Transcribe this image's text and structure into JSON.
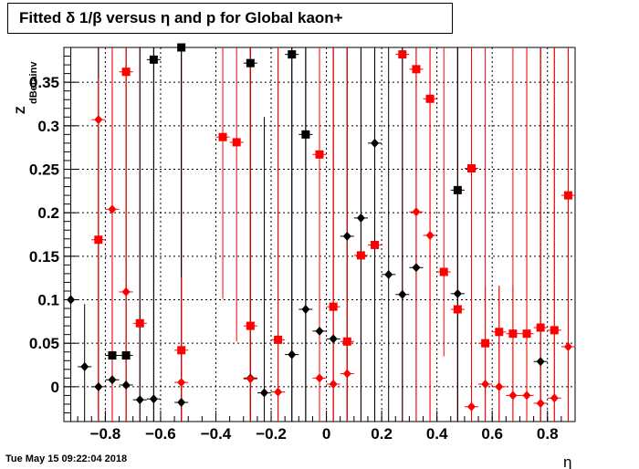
{
  "title": "Fitted δ 1/β versus η and p for Global kaon+",
  "timestamp": "Tue May 15 09:22:04 2018",
  "chart_data": {
    "type": "scatter",
    "title": "Fitted δ 1/β versus η and p for Global kaon+",
    "xlabel": "η",
    "ylabel_main": "Z",
    "ylabel_sub": "dBetainv",
    "xlim": [
      -0.95,
      0.9
    ],
    "ylim": [
      -0.04,
      0.39
    ],
    "xticks": [
      -0.8,
      -0.6,
      -0.4,
      -0.2,
      0,
      0.2,
      0.4,
      0.6,
      0.8
    ],
    "xtick_labels": [
      "−0.8",
      "−0.6",
      "−0.4",
      "−0.2",
      "0",
      "0.2",
      "0.4",
      "0.6",
      "0.8"
    ],
    "yticks": [
      0,
      0.05,
      0.1,
      0.15,
      0.2,
      0.25,
      0.3,
      0.35
    ],
    "ytick_labels": [
      "0",
      "0.05",
      "0.1",
      "0.15",
      "0.2",
      "0.25",
      "0.3",
      "0.35"
    ],
    "series": [
      {
        "marker": "square",
        "color": "#000000",
        "points": [
          {
            "x": -0.775,
            "y": 0.036,
            "lo": -0.04,
            "hi": 0.39
          },
          {
            "x": -0.725,
            "y": 0.036,
            "lo": -0.04,
            "hi": 0.39
          },
          {
            "x": -0.625,
            "y": 0.376,
            "lo": -0.04,
            "hi": 0.39
          },
          {
            "x": -0.525,
            "y": 0.39,
            "lo": -0.04,
            "hi": 0.39
          },
          {
            "x": -0.275,
            "y": 0.372,
            "lo": -0.04,
            "hi": 0.39
          },
          {
            "x": -0.125,
            "y": 0.382,
            "lo": -0.04,
            "hi": 0.39
          },
          {
            "x": -0.075,
            "y": 0.29,
            "lo": -0.04,
            "hi": 0.39
          },
          {
            "x": 0.475,
            "y": 0.226,
            "lo": -0.04,
            "hi": 0.39
          }
        ]
      },
      {
        "marker": "square",
        "color": "#ff0000",
        "points": [
          {
            "x": -0.825,
            "y": 0.169,
            "lo": -0.04,
            "hi": 0.39
          },
          {
            "x": -0.725,
            "y": 0.362,
            "lo": -0.04,
            "hi": 0.39
          },
          {
            "x": -0.675,
            "y": 0.073,
            "lo": -0.04,
            "hi": 0.39
          },
          {
            "x": -0.525,
            "y": 0.042,
            "lo": -0.04,
            "hi": 0.39
          },
          {
            "x": -0.375,
            "y": 0.287,
            "lo": 0.101,
            "hi": 0.39
          },
          {
            "x": -0.325,
            "y": 0.281,
            "lo": 0.052,
            "hi": 0.39
          },
          {
            "x": -0.275,
            "y": 0.07,
            "lo": -0.04,
            "hi": 0.39
          },
          {
            "x": -0.175,
            "y": 0.054,
            "lo": -0.04,
            "hi": 0.39
          },
          {
            "x": -0.025,
            "y": 0.267,
            "lo": -0.04,
            "hi": 0.39
          },
          {
            "x": 0.025,
            "y": 0.092,
            "lo": -0.04,
            "hi": 0.39
          },
          {
            "x": 0.075,
            "y": 0.052,
            "lo": -0.04,
            "hi": 0.39
          },
          {
            "x": 0.125,
            "y": 0.151,
            "lo": -0.04,
            "hi": 0.39
          },
          {
            "x": 0.175,
            "y": 0.163,
            "lo": -0.04,
            "hi": 0.39
          },
          {
            "x": 0.275,
            "y": 0.382,
            "lo": -0.04,
            "hi": 0.39
          },
          {
            "x": 0.325,
            "y": 0.365,
            "lo": -0.04,
            "hi": 0.39
          },
          {
            "x": 0.375,
            "y": 0.331,
            "lo": -0.04,
            "hi": 0.39
          },
          {
            "x": 0.425,
            "y": 0.132,
            "lo": 0.035,
            "hi": 0.39
          },
          {
            "x": 0.475,
            "y": 0.089,
            "lo": -0.04,
            "hi": 0.39
          },
          {
            "x": 0.525,
            "y": 0.251,
            "lo": -0.04,
            "hi": 0.39
          },
          {
            "x": 0.575,
            "y": 0.05,
            "lo": -0.04,
            "hi": 0.39
          },
          {
            "x": 0.625,
            "y": 0.063,
            "lo": -0.04,
            "hi": 0.116
          },
          {
            "x": 0.675,
            "y": 0.061,
            "lo": -0.04,
            "hi": 0.116
          },
          {
            "x": 0.725,
            "y": 0.061,
            "lo": -0.04,
            "hi": 0.39
          },
          {
            "x": 0.775,
            "y": 0.068,
            "lo": -0.04,
            "hi": 0.39
          },
          {
            "x": 0.825,
            "y": 0.065,
            "lo": -0.04,
            "hi": 0.39
          },
          {
            "x": 0.875,
            "y": 0.22,
            "lo": -0.04,
            "hi": 0.39
          }
        ]
      },
      {
        "marker": "diamond",
        "color": "#000000",
        "points": [
          {
            "x": -0.925,
            "y": 0.1,
            "lo": -0.04,
            "hi": 0.39
          },
          {
            "x": -0.875,
            "y": 0.023,
            "lo": -0.04,
            "hi": 0.095
          },
          {
            "x": -0.825,
            "y": 0.0,
            "lo": -0.04,
            "hi": 0.39
          },
          {
            "x": -0.775,
            "y": 0.008,
            "lo": -0.04,
            "hi": 0.39
          },
          {
            "x": -0.725,
            "y": 0.002,
            "lo": -0.04,
            "hi": 0.39
          },
          {
            "x": -0.675,
            "y": -0.015,
            "lo": -0.04,
            "hi": 0.39
          },
          {
            "x": -0.625,
            "y": -0.014,
            "lo": -0.04,
            "hi": 0.39
          },
          {
            "x": -0.525,
            "y": -0.018,
            "lo": -0.04,
            "hi": 0.39
          },
          {
            "x": -0.275,
            "y": 0.01,
            "lo": -0.04,
            "hi": 0.39
          },
          {
            "x": -0.225,
            "y": -0.007,
            "lo": -0.04,
            "hi": 0.31
          },
          {
            "x": -0.125,
            "y": 0.037,
            "lo": -0.04,
            "hi": 0.39
          },
          {
            "x": -0.075,
            "y": 0.089,
            "lo": -0.04,
            "hi": 0.39
          },
          {
            "x": -0.025,
            "y": 0.064,
            "lo": -0.04,
            "hi": 0.39
          },
          {
            "x": 0.025,
            "y": 0.055,
            "lo": -0.04,
            "hi": 0.39
          },
          {
            "x": 0.075,
            "y": 0.173,
            "lo": -0.04,
            "hi": 0.39
          },
          {
            "x": 0.125,
            "y": 0.194,
            "lo": -0.04,
            "hi": 0.39
          },
          {
            "x": 0.175,
            "y": 0.28,
            "lo": -0.04,
            "hi": 0.39
          },
          {
            "x": 0.225,
            "y": 0.129,
            "lo": -0.04,
            "hi": 0.39
          },
          {
            "x": 0.275,
            "y": 0.106,
            "lo": -0.04,
            "hi": 0.39
          },
          {
            "x": 0.325,
            "y": 0.137,
            "lo": -0.04,
            "hi": 0.39
          },
          {
            "x": 0.475,
            "y": 0.107,
            "lo": -0.04,
            "hi": 0.39
          },
          {
            "x": 0.775,
            "y": 0.029,
            "lo": -0.04,
            "hi": 0.39
          }
        ]
      },
      {
        "marker": "diamond",
        "color": "#ff0000",
        "points": [
          {
            "x": -0.825,
            "y": 0.307,
            "lo": -0.04,
            "hi": 0.355
          },
          {
            "x": -0.775,
            "y": 0.204,
            "lo": -0.04,
            "hi": 0.39
          },
          {
            "x": -0.725,
            "y": 0.109,
            "lo": -0.04,
            "hi": 0.39
          },
          {
            "x": -0.525,
            "y": 0.005,
            "lo": -0.04,
            "hi": 0.126
          },
          {
            "x": -0.275,
            "y": 0.009,
            "lo": -0.04,
            "hi": 0.39
          },
          {
            "x": -0.175,
            "y": -0.006,
            "lo": -0.04,
            "hi": 0.39
          },
          {
            "x": -0.025,
            "y": 0.01,
            "lo": -0.04,
            "hi": 0.39
          },
          {
            "x": 0.025,
            "y": 0.003,
            "lo": -0.04,
            "hi": 0.39
          },
          {
            "x": 0.075,
            "y": 0.015,
            "lo": -0.04,
            "hi": 0.39
          },
          {
            "x": 0.325,
            "y": 0.201,
            "lo": -0.04,
            "hi": 0.39
          },
          {
            "x": 0.375,
            "y": 0.174,
            "lo": -0.04,
            "hi": 0.39
          },
          {
            "x": 0.525,
            "y": -0.023,
            "lo": -0.04,
            "hi": 0.39
          },
          {
            "x": 0.575,
            "y": 0.003,
            "lo": -0.04,
            "hi": 0.116
          },
          {
            "x": 0.625,
            "y": 0.0,
            "lo": -0.04,
            "hi": 0.116
          },
          {
            "x": 0.675,
            "y": -0.01,
            "lo": -0.04,
            "hi": 0.39
          },
          {
            "x": 0.725,
            "y": -0.01,
            "lo": -0.04,
            "hi": 0.39
          },
          {
            "x": 0.775,
            "y": -0.019,
            "lo": -0.04,
            "hi": 0.39
          },
          {
            "x": 0.825,
            "y": -0.013,
            "lo": -0.04,
            "hi": 0.39
          },
          {
            "x": 0.875,
            "y": 0.046,
            "lo": -0.04,
            "hi": 0.39
          }
        ]
      }
    ]
  }
}
